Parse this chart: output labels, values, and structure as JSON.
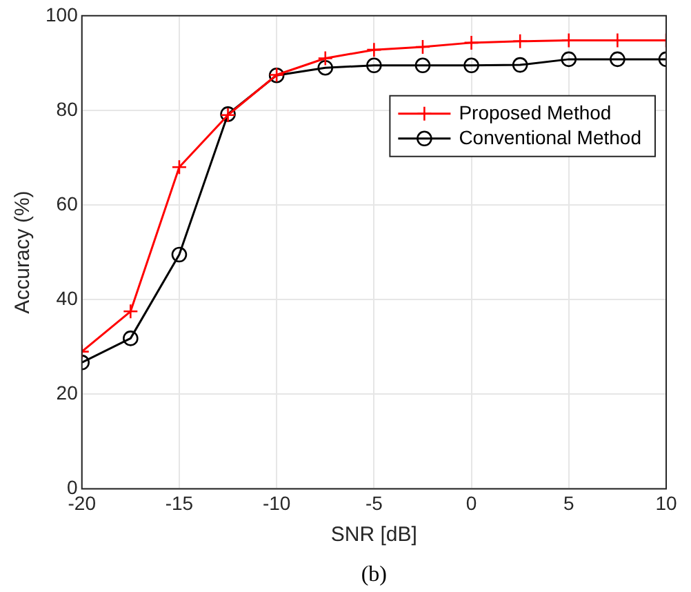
{
  "chart_data": {
    "type": "line",
    "xlabel": "SNR [dB]",
    "ylabel": "Accuracy (%)",
    "annotations": [
      "(b)"
    ],
    "x": [
      -20,
      -17.5,
      -15,
      -12.5,
      -10,
      -7.5,
      -5,
      -2.5,
      0,
      2.5,
      5,
      7.5,
      10
    ],
    "xlim": [
      -20,
      10
    ],
    "xticks": [
      -20,
      -15,
      -10,
      -5,
      0,
      5,
      10
    ],
    "ylim": [
      0,
      100
    ],
    "yticks": [
      0,
      20,
      40,
      60,
      80,
      100
    ],
    "grid": true,
    "legend": "top right",
    "line_style": "solid",
    "series": [
      {
        "name": "Proposed Method",
        "color": "#ff0000",
        "marker": "cross",
        "values": [
          29,
          37.5,
          68,
          79,
          87.5,
          91,
          92.8,
          93.4,
          94.3,
          94.6,
          94.8,
          94.8,
          94.8
        ]
      },
      {
        "name": "Conventional Method",
        "color": "#000000",
        "marker": "circle",
        "values": [
          26.7,
          31.8,
          49.5,
          79.2,
          87.4,
          89,
          89.5,
          89.5,
          89.5,
          89.6,
          90.8,
          90.8,
          90.8
        ]
      }
    ]
  }
}
